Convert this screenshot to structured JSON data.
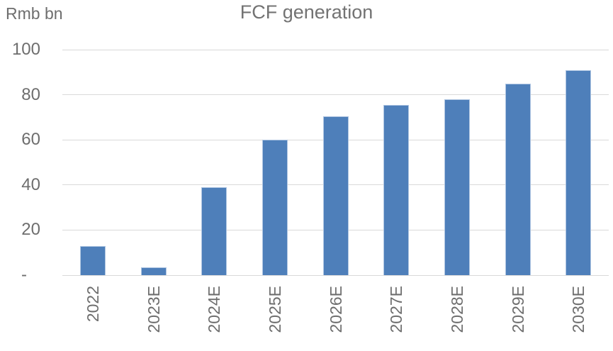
{
  "chart_data": {
    "type": "bar",
    "title": "FCF generation",
    "ylabel": "Rmb bn",
    "xlabel": "",
    "categories": [
      "2022",
      "2023E",
      "2024E",
      "2025E",
      "2026E",
      "2027E",
      "2028E",
      "2029E",
      "2030E"
    ],
    "values": [
      13,
      3.5,
      39,
      60,
      70.5,
      75.5,
      78,
      85,
      91
    ],
    "ylim": [
      0,
      100
    ],
    "yticks": [
      100,
      80,
      60,
      40,
      20,
      0
    ],
    "ytick_labels": [
      "100",
      "80",
      "60",
      "40",
      "20",
      "-"
    ],
    "grid": true,
    "legend": false,
    "colors": {
      "bar": "#4e7fba",
      "bar_border": "#b0c6e2",
      "gridline": "#d9d9d9",
      "text": "#6e6e6e",
      "title_text": "#737373",
      "background": "#ffffff"
    }
  }
}
